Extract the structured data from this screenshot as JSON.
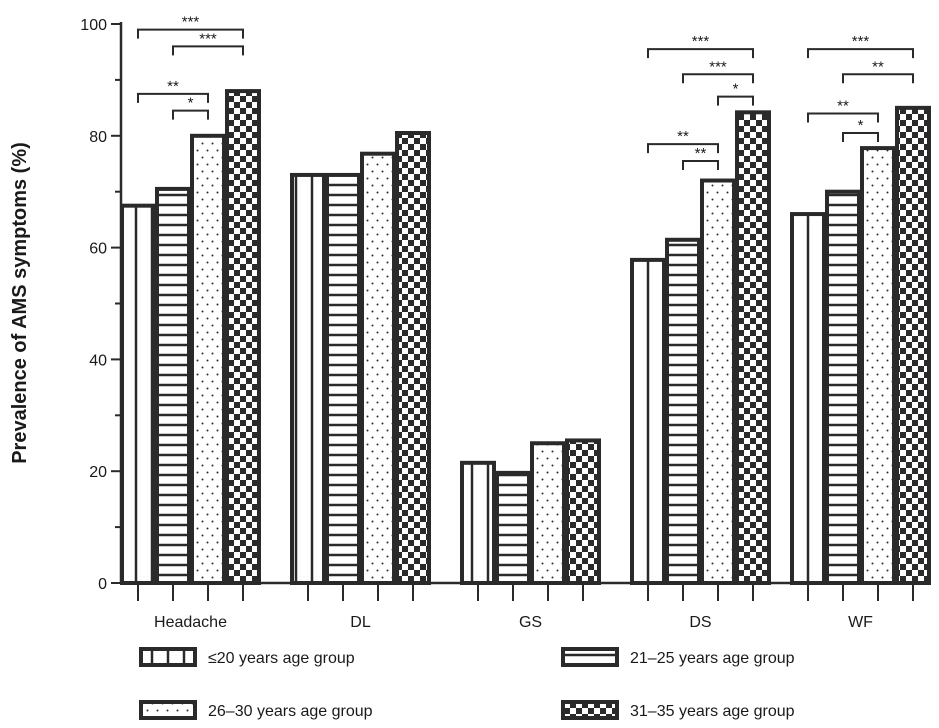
{
  "chart_data": {
    "type": "bar",
    "ylabel": "Prevalence of AMS symptoms (%)",
    "xlabel": "",
    "ylim": [
      0,
      100
    ],
    "yticks": [
      "0",
      "20",
      "40",
      "60",
      "80",
      "100"
    ],
    "categories": [
      "Headache",
      "DL",
      "GS",
      "DS",
      "WF"
    ],
    "legend_position": "bottom",
    "series": [
      {
        "name": "≤20 years age group",
        "pattern": "vertical-lines",
        "values": [
          67.5,
          73,
          21.5,
          57.8,
          66
        ]
      },
      {
        "name": "21–25 years age group",
        "pattern": "horizontal-lines",
        "values": [
          70.5,
          73,
          19.7,
          61.4,
          70
        ]
      },
      {
        "name": "26–30 years age group",
        "pattern": "dots",
        "values": [
          80,
          76.8,
          25,
          72,
          77.8
        ]
      },
      {
        "name": "31–35 years age group",
        "pattern": "checkerboard",
        "values": [
          88,
          80.5,
          25.5,
          84.2,
          85
        ]
      }
    ],
    "significance": [
      {
        "category": 0,
        "from": 0,
        "to": 3,
        "label": "***",
        "level": 99
      },
      {
        "category": 0,
        "from": 1,
        "to": 3,
        "label": "***",
        "level": 96
      },
      {
        "category": 0,
        "from": 0,
        "to": 2,
        "label": "**",
        "level": 87.5
      },
      {
        "category": 0,
        "from": 1,
        "to": 2,
        "label": "*",
        "level": 84.5
      },
      {
        "category": 3,
        "from": 0,
        "to": 3,
        "label": "***",
        "level": 95.5
      },
      {
        "category": 3,
        "from": 1,
        "to": 3,
        "label": "***",
        "level": 91
      },
      {
        "category": 3,
        "from": 2,
        "to": 3,
        "label": "*",
        "level": 87
      },
      {
        "category": 3,
        "from": 0,
        "to": 2,
        "label": "**",
        "level": 78.5
      },
      {
        "category": 3,
        "from": 1,
        "to": 2,
        "label": "**",
        "level": 75.5
      },
      {
        "category": 4,
        "from": 0,
        "to": 3,
        "label": "***",
        "level": 95.5
      },
      {
        "category": 4,
        "from": 1,
        "to": 3,
        "label": "**",
        "level": 91
      },
      {
        "category": 4,
        "from": 0,
        "to": 2,
        "label": "**",
        "level": 84
      },
      {
        "category": 4,
        "from": 1,
        "to": 2,
        "label": "*",
        "level": 80.5
      }
    ]
  },
  "colors": {
    "stroke": "#2a2a2a",
    "fill": "#ffffff"
  }
}
